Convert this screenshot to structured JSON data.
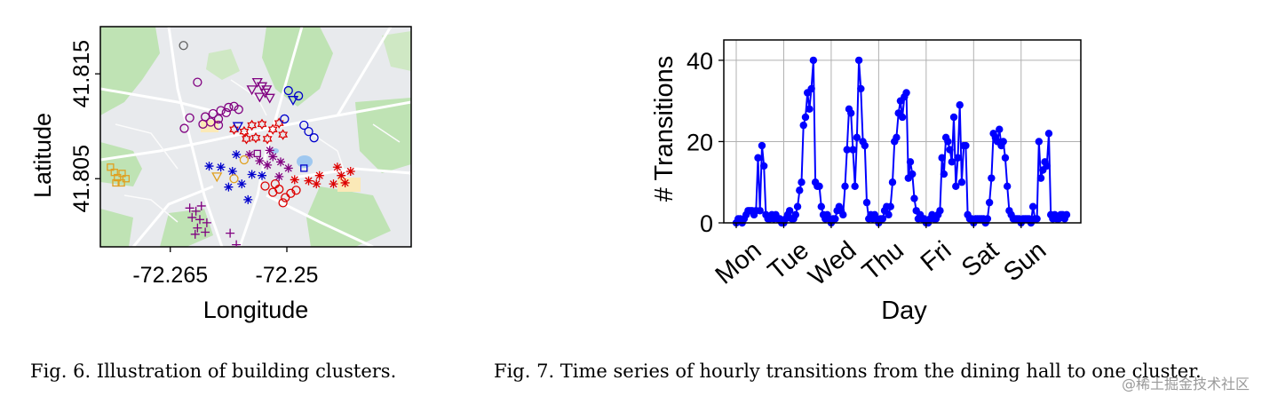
{
  "chart_data": [
    {
      "type": "scatter",
      "xlabel": "Longitude",
      "ylabel": "Latitude",
      "xticks": [
        -72.265,
        -72.25
      ],
      "xtick_labels": [
        "-72.265",
        "-72.25"
      ],
      "yticks": [
        41.805,
        41.815
      ],
      "ytick_labels": [
        "41.805",
        "41.815"
      ],
      "xlim": [
        -72.274,
        -72.234
      ],
      "ylim": [
        41.7985,
        41.8195
      ],
      "background": "map",
      "series": [
        {
          "marker": "circle",
          "color": "#800080",
          "points": [
            [
              -72.2615,
              41.8142
            ],
            [
              -72.2605,
              41.8109
            ],
            [
              -72.2595,
              41.8112
            ],
            [
              -72.2585,
              41.8115
            ],
            [
              -72.2575,
              41.8118
            ],
            [
              -72.2568,
              41.8119
            ],
            [
              -72.2562,
              41.8116
            ],
            [
              -72.2578,
              41.8113
            ],
            [
              -72.2588,
              41.8107
            ],
            [
              -72.2598,
              41.8104
            ],
            [
              -72.2608,
              41.8102
            ],
            [
              -72.2625,
              41.8108
            ],
            [
              -72.2632,
              41.8098
            ],
            [
              -72.2588,
              41.8101
            ]
          ]
        },
        {
          "marker": "triangle-down",
          "color": "#800080",
          "points": [
            [
              -72.2538,
              41.8142
            ],
            [
              -72.2532,
              41.8138
            ],
            [
              -72.2528,
              41.8132
            ],
            [
              -72.2535,
              41.8128
            ],
            [
              -72.2522,
              41.8127
            ],
            [
              -72.2526,
              41.8135
            ],
            [
              -72.2545,
              41.8135
            ]
          ]
        },
        {
          "marker": "star",
          "color": "#dd0000",
          "points": [
            [
              -72.2568,
              41.8097
            ],
            [
              -72.2555,
              41.8095
            ],
            [
              -72.2545,
              41.8101
            ],
            [
              -72.2532,
              41.8102
            ],
            [
              -72.2518,
              41.8097
            ],
            [
              -72.2505,
              41.8092
            ],
            [
              -72.2525,
              41.8088
            ],
            [
              -72.254,
              41.8089
            ],
            [
              -72.2552,
              41.8088
            ],
            [
              -72.251,
              41.8103
            ]
          ]
        },
        {
          "marker": "circle",
          "color": "#0000cc",
          "points": [
            [
              -72.2498,
              41.8134
            ],
            [
              -72.2485,
              41.8129
            ],
            [
              -72.2478,
              41.8101
            ],
            [
              -72.2472,
              41.8095
            ],
            [
              -72.2465,
              41.8089
            ],
            [
              -72.2503,
              41.8107
            ]
          ]
        },
        {
          "marker": "triangle-down",
          "color": "#0000cc",
          "points": [
            [
              -72.2492,
              41.8125
            ],
            [
              -72.2563,
              41.81
            ]
          ]
        },
        {
          "marker": "square",
          "color": "#0000cc",
          "points": [
            [
              -72.2478,
              41.806
            ]
          ]
        },
        {
          "marker": "circle",
          "color": "#dd0000",
          "points": [
            [
              -72.2528,
              41.8043
            ],
            [
              -72.2518,
              41.8037
            ],
            [
              -72.251,
              41.804
            ],
            [
              -72.2502,
              41.8032
            ],
            [
              -72.2495,
              41.8036
            ],
            [
              -72.2505,
              41.8027
            ],
            [
              -72.2488,
              41.8039
            ],
            [
              -72.2515,
              41.8045
            ]
          ]
        },
        {
          "marker": "asterisk",
          "color": "#dd0000",
          "points": [
            [
              -72.2472,
              41.8048
            ],
            [
              -72.2462,
              41.8045
            ],
            [
              -72.2458,
              41.8053
            ],
            [
              -72.243,
              41.8053
            ],
            [
              -72.2425,
              41.8046
            ],
            [
              -72.2418,
              41.8057
            ],
            [
              -72.2435,
              41.8061
            ],
            [
              -72.244,
              41.8045
            ],
            [
              -72.249,
              41.8049
            ]
          ]
        },
        {
          "marker": "asterisk",
          "color": "#0000cc",
          "points": [
            [
              -72.26,
              41.8062
            ],
            [
              -72.2585,
              41.8061
            ],
            [
              -72.257,
              41.8057
            ],
            [
              -72.2558,
              41.8045
            ],
            [
              -72.255,
              41.803
            ],
            [
              -72.2575,
              41.8042
            ],
            [
              -72.2545,
              41.8054
            ],
            [
              -72.2532,
              41.8053
            ],
            [
              -72.2565,
              41.8073
            ]
          ]
        },
        {
          "marker": "asterisk",
          "color": "#800080",
          "points": [
            [
              -72.2548,
              41.8073
            ],
            [
              -72.2535,
              41.8067
            ],
            [
              -72.2525,
              41.8063
            ],
            [
              -72.2518,
              41.8071
            ],
            [
              -72.2508,
              41.8066
            ],
            [
              -72.2498,
              41.806
            ],
            [
              -72.251,
              41.8052
            ],
            [
              -72.2522,
              41.8077
            ]
          ]
        },
        {
          "marker": "circle",
          "color": "#e0a020",
          "points": [
            [
              -72.2555,
              41.8068
            ],
            [
              -72.2568,
              41.805
            ]
          ]
        },
        {
          "marker": "triangle-down",
          "color": "#e0a020",
          "points": [
            [
              -72.259,
              41.8052
            ]
          ]
        },
        {
          "marker": "square",
          "color": "#800080",
          "points": [
            [
              -72.2538,
              41.8074
            ]
          ]
        },
        {
          "marker": "square",
          "color": "#e0a020",
          "points": [
            [
              -72.2727,
              41.8061
            ],
            [
              -72.2722,
              41.8056
            ],
            [
              -72.2718,
              41.8051
            ],
            [
              -72.2712,
              41.8055
            ],
            [
              -72.272,
              41.8046
            ],
            [
              -72.2713,
              41.8046
            ],
            [
              -72.2707,
              41.805
            ]
          ]
        },
        {
          "marker": "plus",
          "color": "#800080",
          "points": [
            [
              -72.2625,
              41.8022
            ],
            [
              -72.2617,
              41.8019
            ],
            [
              -72.261,
              41.8024
            ],
            [
              -72.2622,
              41.8013
            ],
            [
              -72.2612,
              41.8011
            ],
            [
              -72.2603,
              41.8008
            ],
            [
              -72.2615,
              41.8003
            ],
            [
              -72.2605,
              41.7999
            ],
            [
              -72.2618,
              41.7997
            ],
            [
              -72.2573,
              41.7998
            ],
            [
              -72.2565,
              41.7987
            ]
          ]
        },
        {
          "marker": "circle",
          "color": "#606060",
          "points": [
            [
              -72.2633,
              41.8177
            ]
          ]
        }
      ]
    },
    {
      "type": "line",
      "xlabel": "Day",
      "ylabel": "# Transitions",
      "xtick_labels": [
        "Mon",
        "Tue",
        "Wed",
        "Thu",
        "Fri",
        "Sat",
        "Sun"
      ],
      "yticks": [
        0,
        20,
        40
      ],
      "ylim": [
        0,
        45
      ],
      "grid": true,
      "series": [
        {
          "color": "#0000ff",
          "marker": "circle",
          "values": [
            0,
            1,
            1,
            0,
            1,
            2,
            3,
            3,
            3,
            2,
            3,
            16,
            3,
            19,
            14,
            2,
            1,
            1,
            2,
            1,
            2,
            1,
            1,
            0,
            0,
            1,
            2,
            3,
            1,
            1,
            2,
            4,
            8,
            10,
            24,
            26,
            32,
            28,
            33,
            40,
            10,
            9,
            9,
            4,
            2,
            1,
            2,
            1,
            0,
            1,
            1,
            3,
            4,
            3,
            2,
            9,
            18,
            28,
            27,
            18,
            9,
            21,
            40,
            33,
            20,
            19,
            5,
            1,
            2,
            1,
            2,
            1,
            0,
            1,
            1,
            3,
            4,
            2,
            4,
            10,
            20,
            21,
            27,
            30,
            26,
            31,
            32,
            11,
            15,
            12,
            6,
            3,
            1,
            2,
            1,
            1,
            0,
            0,
            1,
            2,
            1,
            1,
            2,
            3,
            16,
            12,
            21,
            20,
            18,
            15,
            26,
            9,
            16,
            29,
            10,
            19,
            19,
            2,
            1,
            1,
            0,
            1,
            1,
            1,
            1,
            1,
            0,
            1,
            5,
            11,
            22,
            21,
            20,
            23,
            19,
            20,
            16,
            9,
            3,
            2,
            1,
            1,
            1,
            1,
            0,
            1,
            1,
            1,
            1,
            0,
            4,
            1,
            1,
            20,
            11,
            13,
            15,
            14,
            22,
            2,
            1,
            2,
            1,
            1,
            2,
            2,
            1,
            2
          ]
        }
      ]
    }
  ],
  "captions": {
    "fig6": "Fig. 6.  Illustration of building clusters.",
    "fig7": "Fig. 7.  Time series of hourly transitions from the dining hall to one cluster."
  },
  "watermark": "@稀土掘金技术社区"
}
